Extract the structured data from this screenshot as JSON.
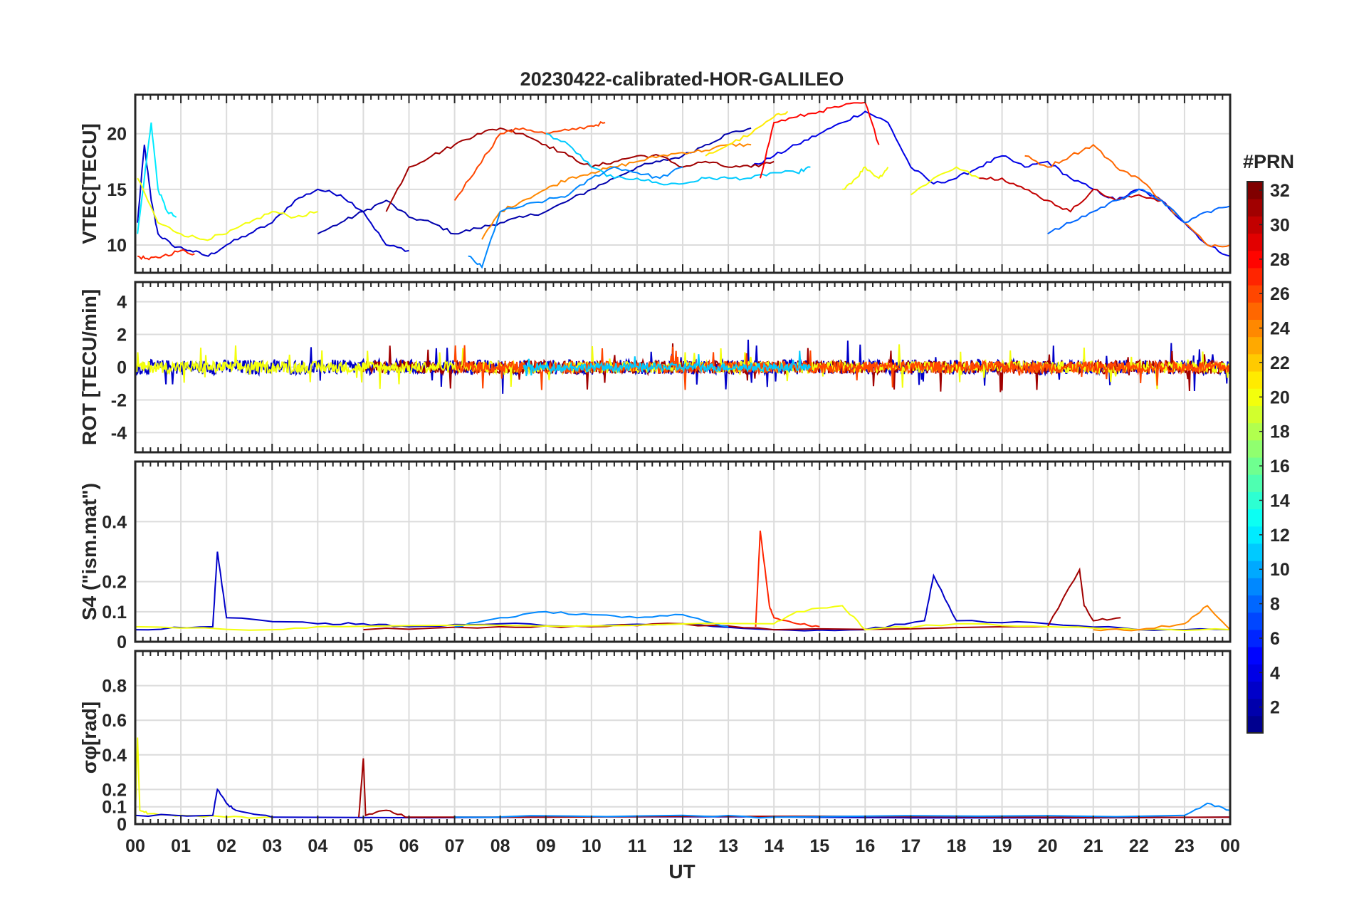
{
  "chart_data": {
    "type": "line",
    "title": "20230422-calibrated-HOR-GALILEO",
    "xlabel": "UT",
    "xticks": [
      "00",
      "01",
      "02",
      "03",
      "04",
      "05",
      "06",
      "07",
      "08",
      "09",
      "10",
      "11",
      "12",
      "13",
      "14",
      "15",
      "16",
      "17",
      "18",
      "19",
      "20",
      "21",
      "22",
      "23",
      "00"
    ],
    "xlim": [
      0,
      24
    ],
    "grid": true,
    "colorbar": {
      "label": "#PRN",
      "range": [
        1,
        32
      ],
      "ticks": [
        "2",
        "4",
        "6",
        "8",
        "10",
        "12",
        "14",
        "16",
        "18",
        "20",
        "22",
        "24",
        "26",
        "28",
        "30",
        "32"
      ],
      "colormap": "jet",
      "colors": [
        "#00008f",
        "#0000ff",
        "#0080ff",
        "#00ffff",
        "#80ff80",
        "#ffff00",
        "#ff8000",
        "#ff0000",
        "#800000"
      ]
    },
    "panels": [
      {
        "ylabel": "VTEC[TECU]",
        "yticks": [
          "10",
          "15",
          "20"
        ],
        "ylim": [
          7.5,
          23.5
        ],
        "series": [
          {
            "prn": 3,
            "x": [
              0.05,
              0.2,
              0.35,
              0.5,
              0.8,
              1.2,
              1.6,
              2.0,
              2.5,
              3.0,
              3.5,
              4.0,
              4.5,
              5.0,
              5.5,
              6.0
            ],
            "y": [
              12,
              19,
              14,
              11,
              10,
              9.5,
              9,
              10,
              11,
              12,
              14,
              15,
              14.5,
              13,
              10,
              9.5
            ]
          },
          {
            "prn": 2,
            "x": [
              4.0,
              4.5,
              5.0,
              5.5,
              6.0,
              6.5,
              7.0,
              7.5,
              8.0,
              8.5,
              9.0,
              9.5,
              10.0,
              10.5,
              11.0,
              11.5,
              12.0,
              12.5,
              13.0,
              13.5
            ],
            "y": [
              11,
              12,
              13,
              14,
              12.5,
              12,
              11,
              11.5,
              12,
              12.5,
              13,
              14,
              15,
              16,
              17,
              17.5,
              18,
              19,
              20,
              20.5
            ]
          },
          {
            "prn": 4,
            "x": [
              13.5,
              14.0,
              14.5,
              15.0,
              15.5,
              16.0,
              16.5,
              17.0,
              17.5,
              18.0,
              18.5,
              19.0,
              19.5,
              20.0,
              20.5,
              21.0,
              21.5,
              22.0,
              22.5,
              23.0,
              23.5,
              24.0
            ],
            "y": [
              17,
              18,
              19,
              20,
              21,
              22,
              21,
              17,
              15.5,
              16,
              17,
              18,
              17,
              17.5,
              16,
              15,
              14,
              15,
              14,
              12,
              10,
              9
            ]
          },
          {
            "prn": 12,
            "x": [
              0.05,
              0.2,
              0.35,
              0.5,
              0.7,
              0.9
            ],
            "y": [
              11,
              16,
              21,
              15,
              13,
              12.5
            ]
          },
          {
            "prn": 20,
            "x": [
              0.05,
              0.5,
              1.0,
              1.5,
              2.0,
              2.5,
              3.0,
              3.5,
              4.0
            ],
            "y": [
              16,
              12,
              11,
              10.5,
              11,
              12,
              13,
              12.5,
              13
            ]
          },
          {
            "prn": 27,
            "x": [
              0.05,
              0.3,
              0.6,
              1.0,
              1.3
            ],
            "y": [
              9,
              8.7,
              9,
              9.5,
              9.2
            ]
          },
          {
            "prn": 31,
            "x": [
              5.5,
              6.0,
              6.5,
              7.0,
              7.5,
              8.0,
              8.5,
              9.0,
              9.5,
              10.0,
              10.5,
              11.0,
              11.5,
              12.0,
              12.5,
              13.0,
              13.5,
              14.0
            ],
            "y": [
              13,
              17,
              18,
              19,
              20,
              20.5,
              20,
              19,
              18,
              17,
              17.5,
              18,
              18,
              17,
              17.5,
              17,
              17,
              17.5
            ]
          },
          {
            "prn": 26,
            "x": [
              7.0,
              7.5,
              8.0,
              8.5,
              9.0,
              9.5,
              10.0,
              10.3
            ],
            "y": [
              14,
              17,
              20,
              20.5,
              20,
              20.3,
              20.7,
              21
            ]
          },
          {
            "prn": 24,
            "x": [
              7.6,
              8.0,
              8.5,
              9.0,
              9.5,
              10.0,
              10.5,
              11.0,
              11.5,
              12.0,
              12.5,
              13.0,
              13.5
            ],
            "y": [
              10.5,
              13,
              14,
              15,
              16,
              16.5,
              17,
              17.5,
              18,
              18.3,
              18.5,
              19,
              19
            ]
          },
          {
            "prn": 11,
            "x": [
              9.0,
              9.5,
              10.0,
              10.5,
              11.0,
              11.5,
              12.0,
              12.5,
              13.0,
              13.5,
              14.0,
              14.5,
              14.8
            ],
            "y": [
              20,
              19,
              17,
              16,
              16,
              15.5,
              15.5,
              16,
              16,
              16,
              16.5,
              16.5,
              17
            ]
          },
          {
            "prn": 9,
            "x": [
              7.3,
              7.6,
              8.0,
              8.5,
              9.0,
              9.5,
              10.0,
              10.5,
              11.0,
              11.5,
              12.0
            ],
            "y": [
              9,
              8,
              13,
              13.5,
              14,
              14.5,
              16,
              17,
              16.5,
              16,
              17
            ]
          },
          {
            "prn": 21,
            "x": [
              12.5,
              13.0,
              13.5,
              14.0,
              14.3
            ],
            "y": [
              18,
              19,
              20,
              21.5,
              22
            ]
          },
          {
            "prn": 28,
            "x": [
              13.7,
              14.0,
              14.5,
              15.0,
              15.5,
              16.0,
              16.3
            ],
            "y": [
              16,
              21,
              21.5,
              22,
              22.5,
              22.8,
              19
            ]
          },
          {
            "prn": 20,
            "x": [
              15.5,
              15.8,
              16.0,
              16.3,
              16.5
            ],
            "y": [
              15,
              16,
              17,
              16,
              17
            ]
          },
          {
            "prn": 20,
            "x": [
              17.0,
              17.5,
              18.0,
              18.5
            ],
            "y": [
              14.5,
              16,
              17,
              16
            ]
          },
          {
            "prn": 25,
            "x": [
              19.5,
              20.0,
              20.5,
              21.0,
              21.5,
              22.0,
              22.5,
              23.0,
              23.5,
              24.0
            ],
            "y": [
              18,
              17,
              18,
              19,
              17,
              16,
              14,
              12,
              10,
              10
            ]
          },
          {
            "prn": 30,
            "x": [
              18.5,
              19.0,
              19.5,
              20.0,
              20.5,
              21.0,
              21.5,
              22.0,
              22.5
            ],
            "y": [
              16,
              16,
              15,
              14,
              13,
              15,
              14,
              14.5,
              14
            ]
          },
          {
            "prn": 8,
            "x": [
              20.0,
              20.5,
              21.0,
              21.5,
              22.0,
              22.5,
              23.0,
              23.5,
              24.0
            ],
            "y": [
              11,
              12,
              13,
              14,
              15,
              14,
              12,
              13,
              13.5
            ]
          }
        ]
      },
      {
        "ylabel": "ROT [TECU/min]",
        "yticks": [
          "-4",
          "-2",
          "0",
          "2",
          "4"
        ],
        "ylim": [
          -5.2,
          5.2
        ],
        "series": [
          {
            "prn": 3,
            "x": [
              0.0,
              24.0
            ],
            "y": [
              0,
              0
            ],
            "noise": 0.45
          },
          {
            "prn": 31,
            "x": [
              5.0,
              24.0
            ],
            "y": [
              0,
              0
            ],
            "noise": 0.4
          },
          {
            "prn": 20,
            "x": [
              0.0,
              24.0
            ],
            "y": [
              0,
              0
            ],
            "noise": 0.35
          },
          {
            "prn": 26,
            "x": [
              7.0,
              24.0
            ],
            "y": [
              0,
              0
            ],
            "noise": 0.35
          },
          {
            "prn": 11,
            "x": [
              8.5,
              14.8
            ],
            "y": [
              0,
              0
            ],
            "noise": 0.25
          }
        ]
      },
      {
        "ylabel": "S4 (\"ism.mat\")",
        "yticks": [
          "0",
          "0.1",
          "0.2",
          "0.4"
        ],
        "ylim": [
          0,
          0.6
        ],
        "series": [
          {
            "prn": 3,
            "x": [
              0.0,
              1.7,
              1.8,
              2.0,
              4.0,
              5.0,
              6.0,
              8.0,
              10.0,
              12.0,
              14.0,
              16.0,
              17.3,
              17.5,
              18.0,
              20.0,
              22.0,
              24.0
            ],
            "y": [
              0.04,
              0.05,
              0.3,
              0.08,
              0.06,
              0.06,
              0.05,
              0.06,
              0.05,
              0.06,
              0.04,
              0.04,
              0.07,
              0.22,
              0.07,
              0.06,
              0.04,
              0.04
            ]
          },
          {
            "prn": 27,
            "x": [
              13.6,
              13.7,
              13.9,
              14.0,
              14.5,
              15.0
            ],
            "y": [
              0.05,
              0.37,
              0.12,
              0.08,
              0.06,
              0.05
            ]
          },
          {
            "prn": 31,
            "x": [
              5.0,
              8.0,
              10.0,
              12.0,
              14.0,
              20.0,
              20.7,
              20.8,
              21.0,
              21.6
            ],
            "y": [
              0.04,
              0.05,
              0.05,
              0.06,
              0.04,
              0.05,
              0.24,
              0.12,
              0.07,
              0.08
            ]
          },
          {
            "prn": 9,
            "x": [
              7.0,
              8.0,
              9.0,
              10.0,
              11.0,
              12.0,
              13.0
            ],
            "y": [
              0.05,
              0.08,
              0.1,
              0.09,
              0.08,
              0.09,
              0.05
            ]
          },
          {
            "prn": 20,
            "x": [
              0.0,
              3.0,
              4.5,
              14.0,
              14.5,
              15.5,
              16.0,
              18.0,
              20.0,
              22.0,
              24.0
            ],
            "y": [
              0.05,
              0.04,
              0.05,
              0.06,
              0.1,
              0.12,
              0.04,
              0.06,
              0.05,
              0.04,
              0.04
            ]
          },
          {
            "prn": 24,
            "x": [
              21.0,
              22.0,
              23.0,
              23.5,
              24.0
            ],
            "y": [
              0.04,
              0.04,
              0.06,
              0.12,
              0.04
            ]
          }
        ]
      },
      {
        "ylabel": "σφ[rad]",
        "yticks": [
          "0",
          "0.1",
          "0.2",
          "0.4",
          "0.6",
          "0.8"
        ],
        "ylim": [
          0,
          1.0
        ],
        "series": [
          {
            "prn": 20,
            "x": [
              0.0,
              0.05,
              0.1,
              0.3,
              1.0,
              2.0,
              3.0
            ],
            "y": [
              0.05,
              0.5,
              0.08,
              0.06,
              0.05,
              0.04,
              0.04
            ]
          },
          {
            "prn": 3,
            "x": [
              0.0,
              1.7,
              1.8,
              2.0,
              2.2,
              3.0,
              24.0
            ],
            "y": [
              0.05,
              0.05,
              0.2,
              0.12,
              0.08,
              0.04,
              0.04
            ]
          },
          {
            "prn": 31,
            "x": [
              4.9,
              5.0,
              5.05,
              5.5,
              6.0,
              24.0
            ],
            "y": [
              0.04,
              0.38,
              0.05,
              0.08,
              0.04,
              0.04
            ]
          },
          {
            "prn": 9,
            "x": [
              7.0,
              12.0,
              14.0,
              23.0,
              23.5,
              24.0
            ],
            "y": [
              0.04,
              0.05,
              0.04,
              0.05,
              0.12,
              0.08
            ]
          }
        ]
      }
    ]
  }
}
